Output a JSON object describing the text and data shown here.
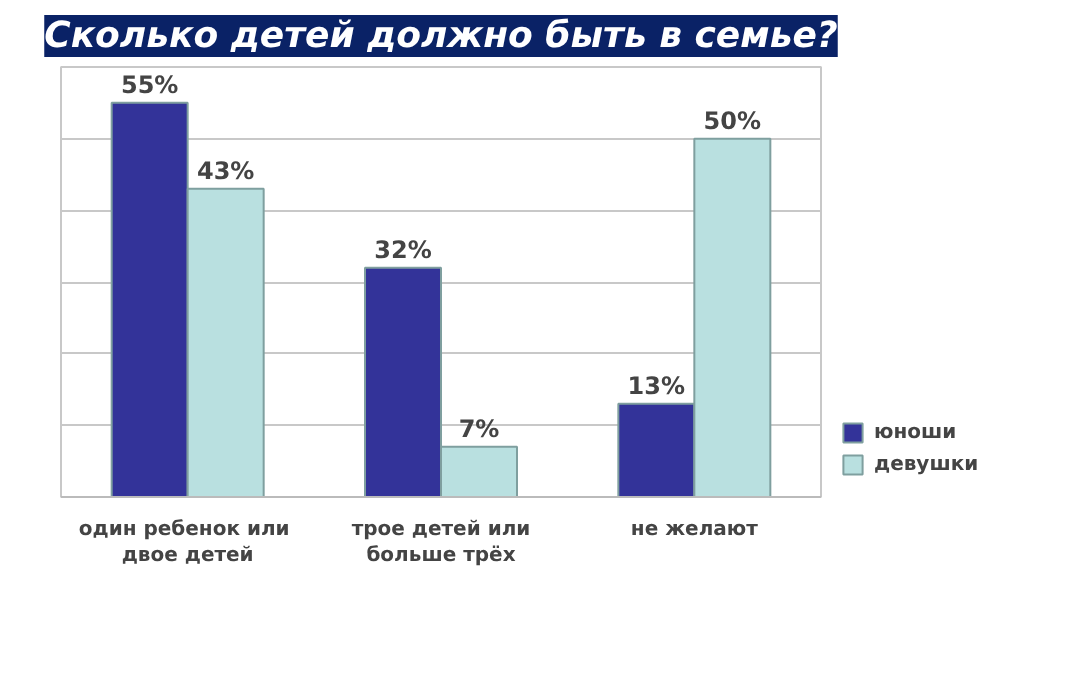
{
  "chart_data": {
    "type": "bar",
    "title": "Сколько детей должно быть в семье?",
    "categories": [
      "один ребенок  или\nдвое детей",
      "трое детей или\nбольше трёх",
      "не желают"
    ],
    "series": [
      {
        "name": "юноши",
        "color": "#333399",
        "values": [
          55,
          32,
          13
        ],
        "value_labels": [
          "55%",
          "32%",
          "13%"
        ]
      },
      {
        "name": "девушки",
        "color": "#b9e0e0",
        "values": [
          43,
          7,
          50
        ],
        "value_labels": [
          "43%",
          "7%",
          "50%"
        ]
      }
    ],
    "ylim": [
      0,
      60
    ],
    "yticks": [
      {
        "value": 0,
        "label": null
      },
      {
        "value": 10,
        "label": null
      },
      {
        "value": 20,
        "label": null
      },
      {
        "value": 30,
        "label": null
      },
      {
        "value": 40,
        "label": null
      },
      {
        "value": 50,
        "label": null
      },
      {
        "value": 60,
        "label": null
      }
    ],
    "grid": "y",
    "tick_labels": "x",
    "legend": "bottom right"
  }
}
